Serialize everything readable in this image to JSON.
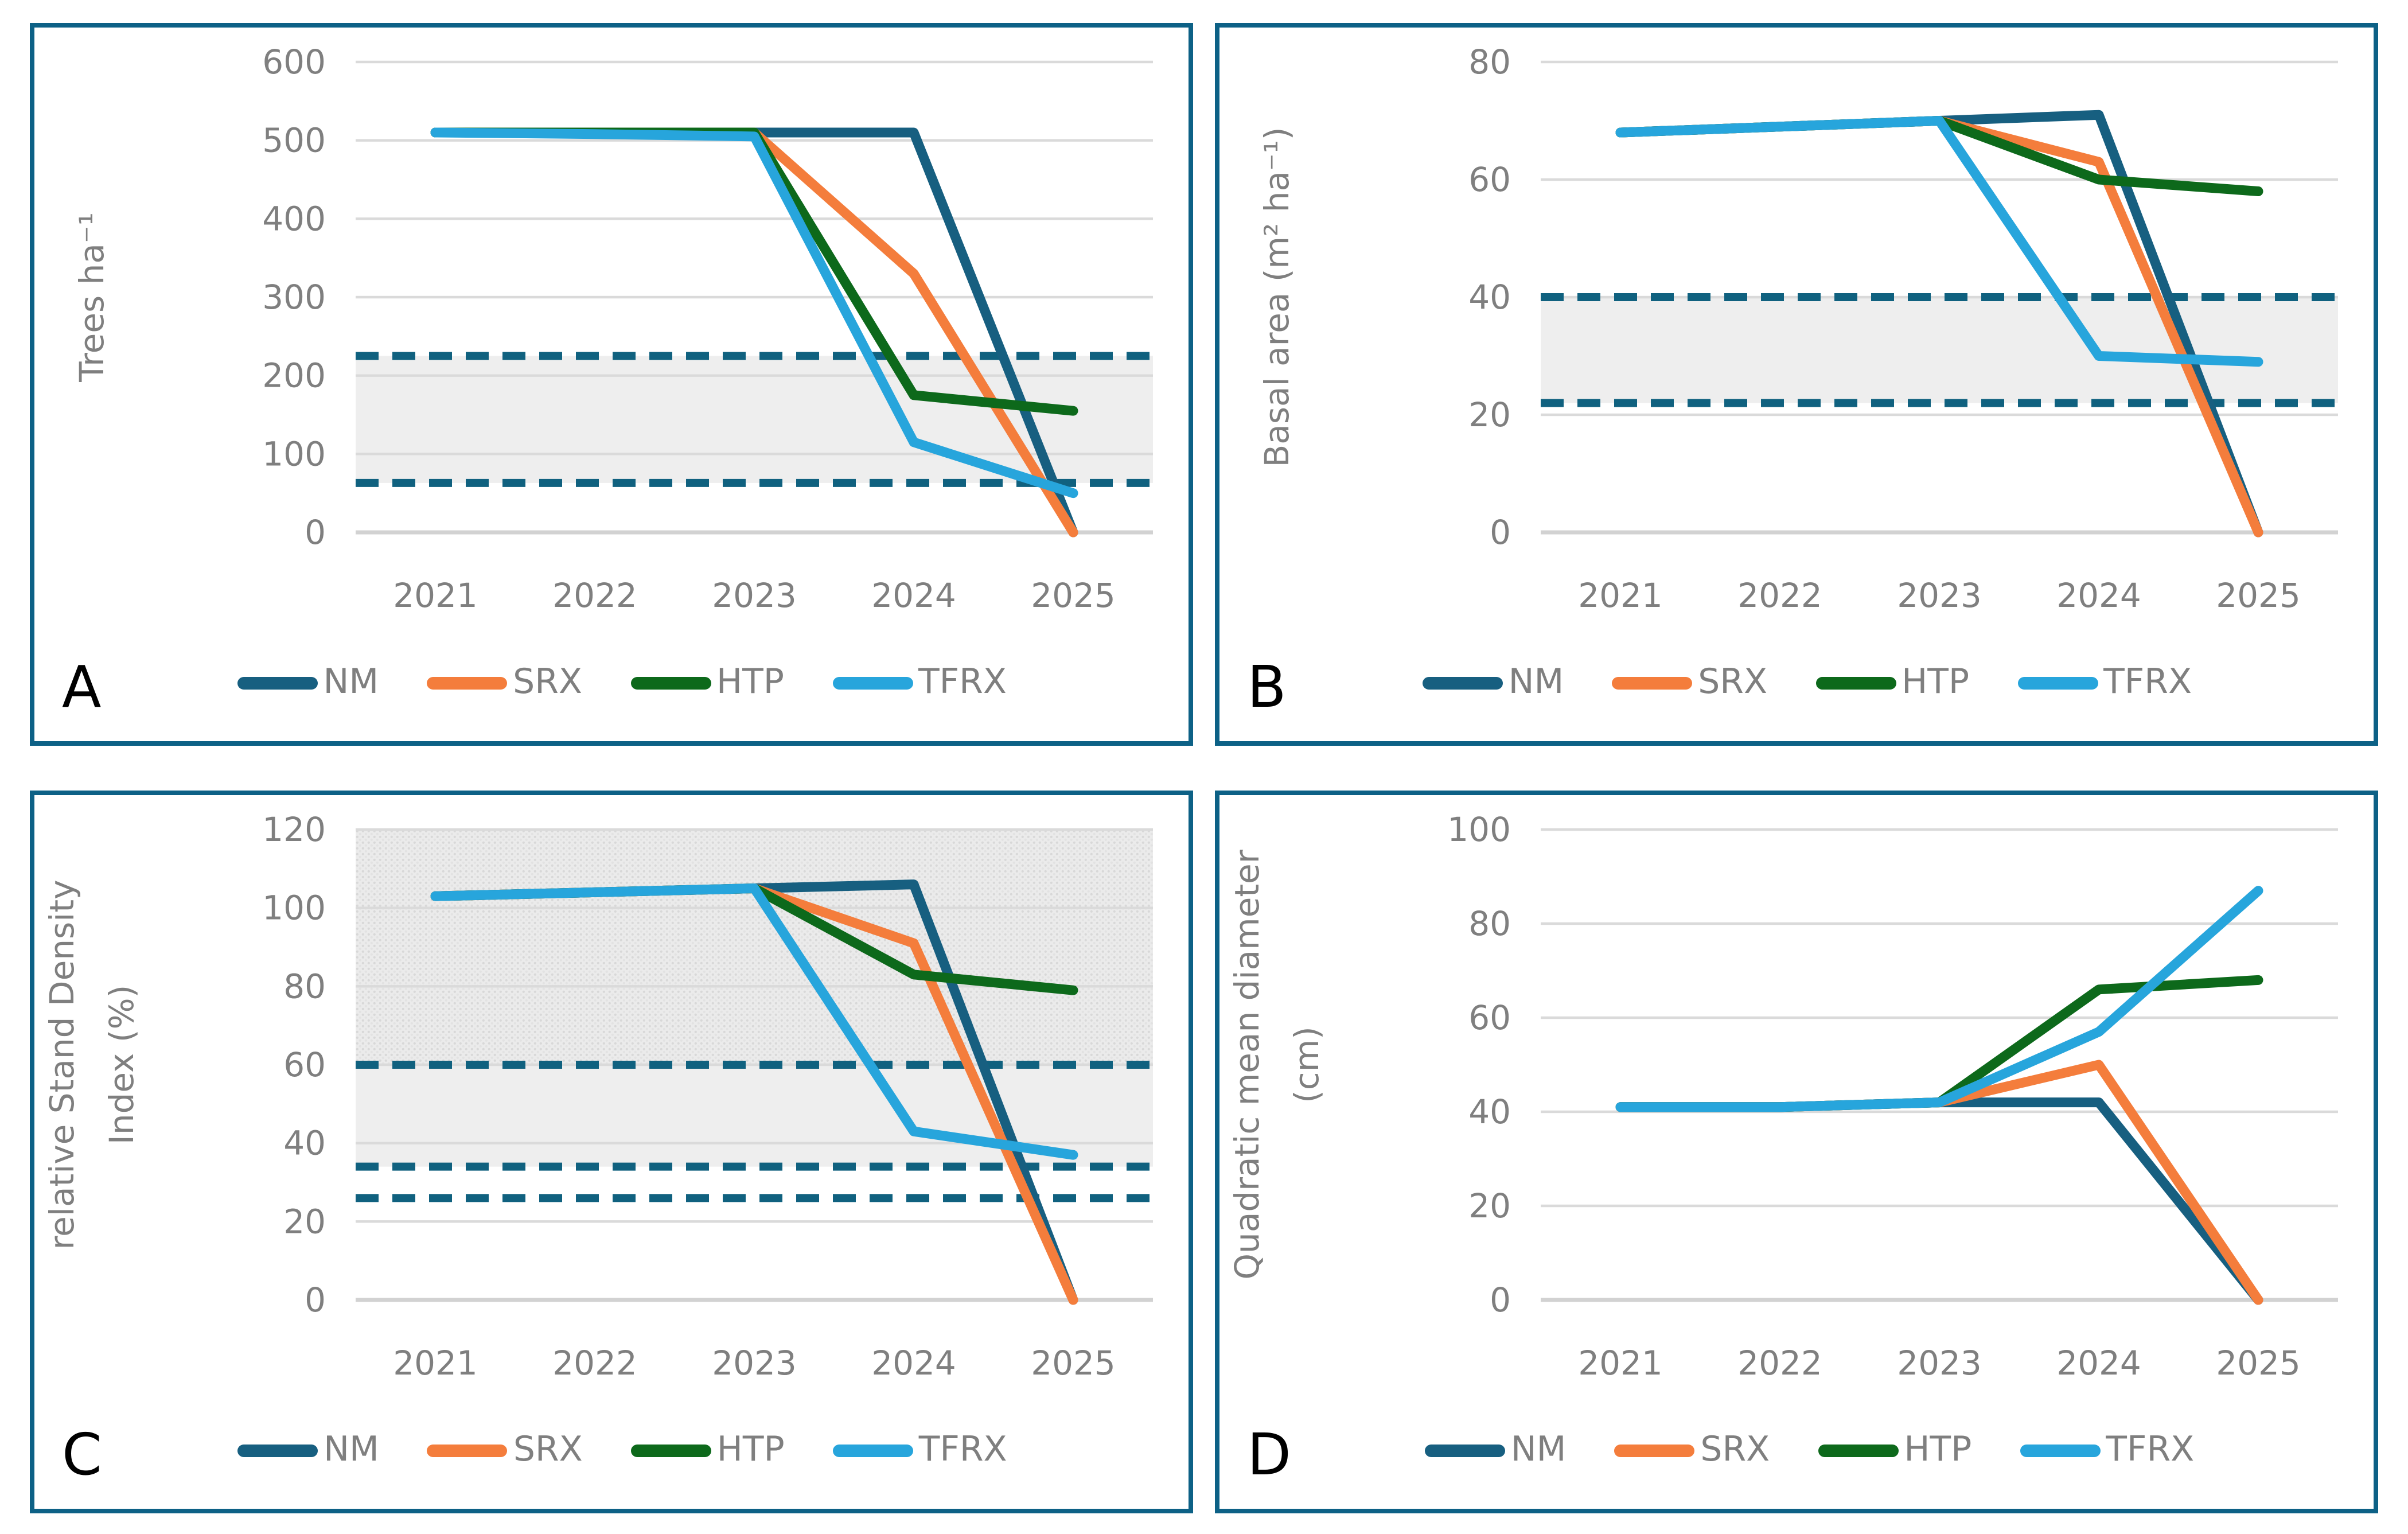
{
  "figure": {
    "panel_letters": [
      "A",
      "B",
      "C",
      "D"
    ],
    "x_axis_years": [
      "2021",
      "2022",
      "2023",
      "2024",
      "2025"
    ],
    "legend_labels": [
      "NM",
      "SRX",
      "HTP",
      "TFRX"
    ],
    "colors": {
      "NM": "#175f80",
      "SRX": "#f47d3c",
      "HTP": "#0d691b",
      "TFRX": "#27a5dc",
      "reference_dash": "#10617f",
      "panel_border": "#0d6186",
      "band_fill": "#eeeeee",
      "band_fill_textured": "#ebebeb",
      "gridline": "#dadada",
      "axis_text": "#7f7f7f"
    }
  },
  "chart_data": [
    {
      "panel_label": "A",
      "type": "line",
      "ylabel_lines": [
        "Trees ha⁻¹"
      ],
      "ylim": [
        0,
        600
      ],
      "yticks": [
        0,
        100,
        200,
        300,
        400,
        500,
        600
      ],
      "x": [
        "2021",
        "2022",
        "2023",
        "2024",
        "2025"
      ],
      "grid": true,
      "legend_position": "bottom",
      "reference_lines": [
        225,
        63
      ],
      "bands": [
        {
          "from": 63,
          "to": 225,
          "style": "plain"
        }
      ],
      "series": [
        {
          "name": "NM",
          "color": "#175f80",
          "values": [
            510,
            510,
            510,
            510,
            0
          ]
        },
        {
          "name": "SRX",
          "color": "#f47d3c",
          "values": [
            510,
            510,
            510,
            330,
            0
          ]
        },
        {
          "name": "HTP",
          "color": "#0d691b",
          "values": [
            510,
            510,
            510,
            175,
            155
          ]
        },
        {
          "name": "TFRX",
          "color": "#27a5dc",
          "values": [
            510,
            508,
            505,
            115,
            50
          ]
        }
      ]
    },
    {
      "panel_label": "B",
      "type": "line",
      "ylabel_lines": [
        "Basal area (m² ha⁻¹)"
      ],
      "ylim": [
        0,
        80
      ],
      "yticks": [
        0,
        20,
        40,
        60,
        80
      ],
      "x": [
        "2021",
        "2022",
        "2023",
        "2024",
        "2025"
      ],
      "grid": true,
      "legend_position": "bottom",
      "reference_lines": [
        40,
        22
      ],
      "bands": [
        {
          "from": 22,
          "to": 40,
          "style": "plain"
        }
      ],
      "series": [
        {
          "name": "NM",
          "color": "#175f80",
          "values": [
            68,
            69,
            70,
            71,
            0
          ]
        },
        {
          "name": "SRX",
          "color": "#f47d3c",
          "values": [
            68,
            69,
            70,
            63,
            0
          ]
        },
        {
          "name": "HTP",
          "color": "#0d691b",
          "values": [
            68,
            69,
            70,
            60,
            58
          ]
        },
        {
          "name": "TFRX",
          "color": "#27a5dc",
          "values": [
            68,
            69,
            70,
            30,
            29
          ]
        }
      ]
    },
    {
      "panel_label": "C",
      "type": "line",
      "ylabel_lines": [
        "relative Stand Density",
        "Index (%)"
      ],
      "ylim": [
        0,
        120
      ],
      "yticks": [
        0,
        20,
        40,
        60,
        80,
        100,
        120
      ],
      "x": [
        "2021",
        "2022",
        "2023",
        "2024",
        "2025"
      ],
      "grid": true,
      "legend_position": "bottom",
      "reference_lines": [
        60,
        34,
        26
      ],
      "bands": [
        {
          "from": 60,
          "to": 120,
          "style": "textured"
        },
        {
          "from": 34,
          "to": 60,
          "style": "plain"
        }
      ],
      "series": [
        {
          "name": "NM",
          "color": "#175f80",
          "values": [
            103,
            104,
            105,
            106,
            0
          ]
        },
        {
          "name": "SRX",
          "color": "#f47d3c",
          "values": [
            103,
            104,
            105,
            91,
            0
          ]
        },
        {
          "name": "HTP",
          "color": "#0d691b",
          "values": [
            103,
            104,
            105,
            83,
            79
          ]
        },
        {
          "name": "TFRX",
          "color": "#27a5dc",
          "values": [
            103,
            104,
            105,
            43,
            37
          ]
        }
      ]
    },
    {
      "panel_label": "D",
      "type": "line",
      "ylabel_lines": [
        "Quadratic mean diameter",
        "(cm)"
      ],
      "ylim": [
        0,
        100
      ],
      "yticks": [
        0,
        20,
        40,
        60,
        80,
        100
      ],
      "x": [
        "2021",
        "2022",
        "2023",
        "2024",
        "2025"
      ],
      "grid": true,
      "legend_position": "bottom",
      "reference_lines": [],
      "bands": [],
      "series": [
        {
          "name": "NM",
          "color": "#175f80",
          "values": [
            41,
            41,
            42,
            42,
            0
          ]
        },
        {
          "name": "SRX",
          "color": "#f47d3c",
          "values": [
            41,
            41,
            42,
            50,
            0
          ]
        },
        {
          "name": "HTP",
          "color": "#0d691b",
          "values": [
            41,
            41,
            42,
            66,
            68
          ]
        },
        {
          "name": "TFRX",
          "color": "#27a5dc",
          "values": [
            41,
            41,
            42,
            57,
            87
          ]
        }
      ]
    }
  ]
}
